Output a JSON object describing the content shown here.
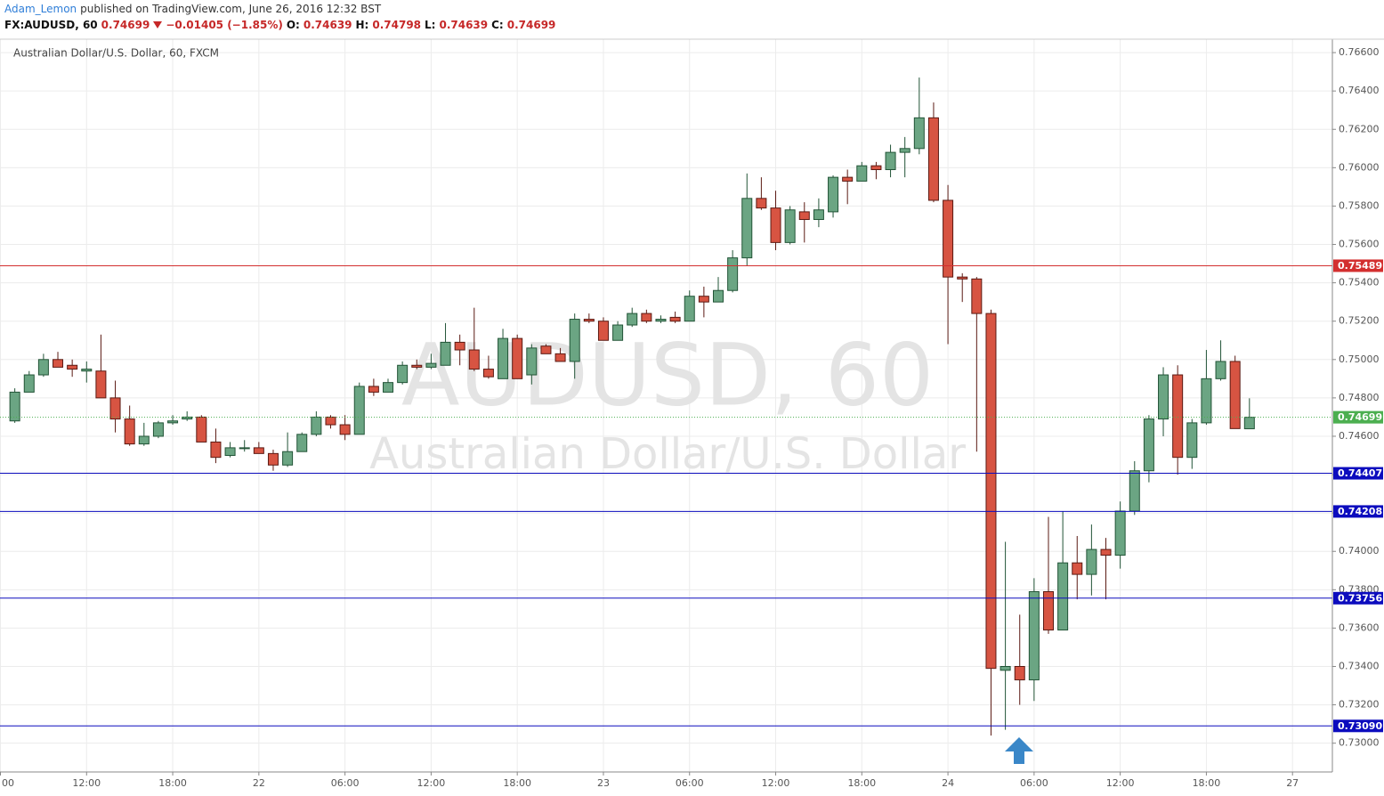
{
  "header": {
    "user": "Adam_Lemon",
    "published": "published on TradingView.com, June 26, 2016 12:32 BST",
    "symbol": "FX:AUDUSD, 60",
    "last": "0.74699",
    "change": "−0.01405 (−1.85%)",
    "o_label": "O:",
    "o": "0.74639",
    "h_label": "H:",
    "h": "0.74798",
    "l_label": "L:",
    "l": "0.74639",
    "c_label": "C:",
    "c": "0.74699"
  },
  "chart_data": {
    "type": "candlestick",
    "title": "Australian Dollar/U.S. Dollar, 60, FXCM",
    "watermark": [
      "AUDUSD, 60",
      "Australian Dollar/U.S. Dollar"
    ],
    "categories": [
      "00",
      null,
      null,
      null,
      null,
      null,
      "12:00",
      null,
      null,
      null,
      null,
      null,
      "18:00",
      null,
      null,
      null,
      null,
      null,
      "22",
      null,
      null,
      null,
      null,
      null,
      "06:00",
      null,
      null,
      null,
      null,
      null,
      "12:00",
      null,
      null,
      null,
      null,
      null,
      "18:00",
      null,
      null,
      null,
      null,
      null,
      "23",
      null,
      null,
      null,
      null,
      null,
      "06:00",
      null,
      null,
      null,
      null,
      null,
      "12:00",
      null,
      null,
      null,
      null,
      null,
      "18:00",
      null,
      null,
      null,
      null,
      null,
      "24",
      null,
      null,
      null,
      null,
      null,
      "06:00",
      null,
      null,
      null,
      null,
      null,
      "12:00",
      null,
      null,
      null,
      null,
      null,
      "18:00",
      null,
      null,
      null,
      null,
      null,
      "27"
    ],
    "open": [
      null,
      0.7468,
      0.7483,
      0.7492,
      0.75,
      0.7497,
      0.7494,
      0.7494,
      0.748,
      0.7469,
      0.7456,
      0.746,
      0.7467,
      0.7469,
      0.747,
      0.7457,
      0.745,
      0.7454,
      0.7454,
      0.7451,
      0.7445,
      0.7452,
      0.7461,
      0.747,
      0.7466,
      0.7461,
      0.7486,
      0.7483,
      0.7488,
      0.7497,
      0.7496,
      0.7497,
      0.7509,
      0.7505,
      0.7495,
      0.749,
      0.7511,
      0.7492,
      0.7507,
      0.7503,
      0.7499,
      0.7521,
      0.752,
      0.751,
      0.7518,
      0.7524,
      0.752,
      0.7522,
      0.752,
      0.7533,
      0.753,
      0.7536,
      0.7553,
      0.7584,
      0.7579,
      0.7561,
      0.7577,
      0.7573,
      0.7577,
      0.7595,
      0.7593,
      0.7601,
      0.7599,
      0.7608,
      0.761,
      0.7626,
      0.7583,
      0.7543,
      0.7542,
      0.7524,
      0.7338,
      0.734,
      0.7333,
      0.7379,
      0.7359,
      0.7394,
      0.7388,
      0.7401,
      0.7398,
      0.7421,
      0.7442,
      0.7469,
      0.7492,
      0.7449,
      0.7467,
      0.749,
      0.7499,
      0.74639,
      null,
      null,
      null
    ],
    "high": [
      null,
      0.7485,
      0.7494,
      0.7503,
      0.7504,
      0.75,
      0.7499,
      0.7513,
      0.7489,
      0.7476,
      0.7467,
      0.7468,
      0.7471,
      0.7473,
      0.7471,
      0.7464,
      0.7457,
      0.7458,
      0.7457,
      0.7453,
      0.7462,
      0.7462,
      0.7473,
      0.7471,
      0.7471,
      0.7488,
      0.749,
      0.749,
      0.7499,
      0.75,
      0.7503,
      0.7519,
      0.7513,
      0.7527,
      0.7502,
      0.7516,
      0.7513,
      0.7508,
      0.7508,
      0.7506,
      0.7524,
      0.7524,
      0.7522,
      0.752,
      0.7527,
      0.7526,
      0.7523,
      0.7525,
      0.7536,
      0.7538,
      0.7543,
      0.7557,
      0.7597,
      0.7595,
      0.7588,
      0.758,
      0.7582,
      0.7584,
      0.7596,
      0.7599,
      0.7603,
      0.7603,
      0.7612,
      0.7616,
      0.7647,
      0.7634,
      0.7591,
      0.7545,
      0.7543,
      0.7526,
      0.7405,
      0.7367,
      0.7386,
      0.7418,
      0.7421,
      0.7408,
      0.7414,
      0.7407,
      0.7426,
      0.7447,
      0.7471,
      0.7496,
      0.7497,
      0.7469,
      0.7505,
      0.751,
      0.7502,
      0.74798,
      null,
      null,
      null
    ],
    "low": [
      null,
      0.7467,
      0.7483,
      0.7491,
      0.7496,
      0.7491,
      0.7488,
      0.748,
      0.7462,
      0.7455,
      0.7455,
      0.7459,
      0.7466,
      0.7468,
      0.7457,
      0.7446,
      0.7449,
      0.7452,
      0.7451,
      0.7442,
      0.7444,
      0.7452,
      0.746,
      0.7464,
      0.7458,
      0.7461,
      0.7481,
      0.7483,
      0.7487,
      0.7495,
      0.7495,
      0.7497,
      0.7497,
      0.7494,
      0.749,
      0.749,
      0.749,
      0.7487,
      0.7503,
      0.7499,
      0.749,
      0.7519,
      0.751,
      0.751,
      0.7517,
      0.7519,
      0.7519,
      0.7519,
      0.752,
      0.7522,
      0.753,
      0.7535,
      0.7549,
      0.7578,
      0.7557,
      0.756,
      0.7561,
      0.7569,
      0.7574,
      0.7581,
      0.7593,
      0.7594,
      0.7595,
      0.7595,
      0.7607,
      0.7582,
      0.7508,
      0.753,
      0.7452,
      0.7304,
      0.7307,
      0.732,
      0.7322,
      0.7357,
      0.7359,
      0.7375,
      0.7377,
      0.7375,
      0.7391,
      0.7419,
      0.7436,
      0.746,
      0.744,
      0.7443,
      0.7466,
      0.7489,
      0.7464,
      0.74639,
      null,
      null,
      null
    ],
    "close": [
      null,
      0.7483,
      0.7492,
      0.75,
      0.7496,
      0.7495,
      0.7495,
      0.748,
      0.7469,
      0.7456,
      0.746,
      0.7467,
      0.7468,
      0.747,
      0.7457,
      0.7449,
      0.7454,
      0.7454,
      0.7451,
      0.7445,
      0.7452,
      0.7461,
      0.747,
      0.7466,
      0.7461,
      0.7486,
      0.7483,
      0.7488,
      0.7497,
      0.7496,
      0.7498,
      0.7509,
      0.7505,
      0.7495,
      0.7491,
      0.7511,
      0.749,
      0.7506,
      0.7503,
      0.7499,
      0.7521,
      0.752,
      0.751,
      0.7518,
      0.7524,
      0.752,
      0.7521,
      0.752,
      0.7533,
      0.753,
      0.7536,
      0.7553,
      0.7584,
      0.7579,
      0.7561,
      0.7578,
      0.7573,
      0.7578,
      0.7595,
      0.7593,
      0.7601,
      0.7599,
      0.7608,
      0.761,
      0.7626,
      0.7583,
      0.7543,
      0.7542,
      0.7524,
      0.7339,
      0.734,
      0.7333,
      0.7379,
      0.7359,
      0.7394,
      0.7388,
      0.7401,
      0.7398,
      0.7421,
      0.7442,
      0.7469,
      0.7492,
      0.7449,
      0.7467,
      0.749,
      0.7499,
      0.7464,
      0.74699,
      null,
      null,
      null
    ],
    "up_color": "#6ba583",
    "up_border": "#225437",
    "down_color": "#d75442",
    "down_border": "#5b1a13",
    "ylim": [
      0.7285,
      0.7667
    ],
    "yticks": [
      {
        "value": 0.73,
        "label": "0.73000"
      },
      {
        "value": 0.732,
        "label": "0.73200"
      },
      {
        "value": 0.734,
        "label": "0.73400"
      },
      {
        "value": 0.736,
        "label": "0.73600"
      },
      {
        "value": 0.738,
        "label": "0.73800"
      },
      {
        "value": 0.74,
        "label": "0.74000"
      },
      {
        "value": 0.742,
        "label": "0.74200"
      },
      {
        "value": 0.744,
        "label": "0.74400"
      },
      {
        "value": 0.746,
        "label": "0.74600"
      },
      {
        "value": 0.748,
        "label": "0.74800"
      },
      {
        "value": 0.75,
        "label": "0.75000"
      },
      {
        "value": 0.752,
        "label": "0.75200"
      },
      {
        "value": 0.754,
        "label": "0.75400"
      },
      {
        "value": 0.756,
        "label": "0.75600"
      },
      {
        "value": 0.758,
        "label": "0.75800"
      },
      {
        "value": 0.76,
        "label": "0.76000"
      },
      {
        "value": 0.762,
        "label": "0.76200"
      },
      {
        "value": 0.764,
        "label": "0.76400"
      },
      {
        "value": 0.766,
        "label": "0.76600"
      }
    ],
    "grid": true,
    "hlines": {
      "values": [
        0.75489,
        0.74407,
        0.74208,
        0.73756,
        {
          "value": 0.7309,
          "label": "0.73090"
        }
      ],
      "colors": [
        "#d32f2f",
        "#0c0cbe",
        "#0c0cbe",
        "#0c0cbe",
        "#0c0cbe"
      ]
    },
    "last_price": 0.74699,
    "last_color": "#4caf50"
  }
}
